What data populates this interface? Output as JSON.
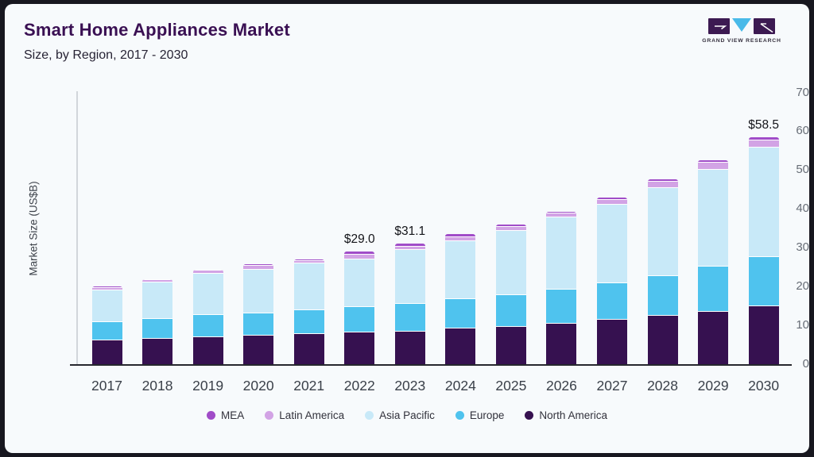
{
  "header": {
    "title": "Smart Home Appliances Market",
    "subtitle": "Size, by Region, 2017 - 2030"
  },
  "logo": {
    "text": "GRAND VIEW RESEARCH",
    "square_color": "#3c1a52",
    "triangle_color": "#49bae9"
  },
  "chart_data": {
    "type": "bar",
    "stacked": true,
    "title": "Smart Home Appliances Market Size, by Region, 2017 - 2030",
    "ylabel": "Market Size (US$B)",
    "ylim": [
      0,
      70
    ],
    "yticks": [
      0,
      10,
      20,
      30,
      40,
      50,
      60,
      70
    ],
    "grid": false,
    "legend_position": "bottom",
    "categories": [
      "2017",
      "2018",
      "2019",
      "2020",
      "2021",
      "2022",
      "2023",
      "2024",
      "2025",
      "2026",
      "2027",
      "2028",
      "2029",
      "2030"
    ],
    "series": [
      {
        "name": "MEA",
        "color": "#a04cc8",
        "values": [
          0.4,
          0.3,
          0.3,
          0.4,
          0.3,
          0.8,
          0.7,
          0.7,
          0.7,
          0.5,
          0.5,
          0.6,
          0.7,
          0.8
        ]
      },
      {
        "name": "Latin America",
        "color": "#d2a3e5",
        "values": [
          0.7,
          0.6,
          0.7,
          1.0,
          0.6,
          1.1,
          1.0,
          1.0,
          1.1,
          1.1,
          1.3,
          1.6,
          1.8,
          1.8
        ]
      },
      {
        "name": "Asia Pacific",
        "color": "#c8e9f8",
        "values": [
          8.2,
          9.4,
          10.7,
          11.1,
          12.1,
          12.3,
          13.8,
          15.0,
          16.4,
          18.5,
          20.2,
          22.6,
          25.0,
          28.2
        ]
      },
      {
        "name": "Europe",
        "color": "#4fc3ee",
        "values": [
          4.6,
          5.1,
          5.7,
          5.8,
          6.2,
          6.6,
          7.2,
          7.6,
          8.2,
          8.8,
          9.4,
          10.3,
          11.5,
          12.7
        ]
      },
      {
        "name": "North America",
        "color": "#361150",
        "values": [
          6.2,
          6.6,
          7.0,
          7.4,
          7.8,
          8.2,
          8.4,
          9.2,
          9.7,
          10.5,
          11.5,
          12.5,
          13.6,
          15.0
        ]
      }
    ],
    "stack_order_bottom_to_top": [
      "North America",
      "Europe",
      "Asia Pacific",
      "Latin America",
      "MEA"
    ],
    "annotations": [
      {
        "category": "2022",
        "text": "$29.0"
      },
      {
        "category": "2023",
        "text": "$31.1"
      },
      {
        "category": "2030",
        "text": "$58.5"
      }
    ]
  }
}
